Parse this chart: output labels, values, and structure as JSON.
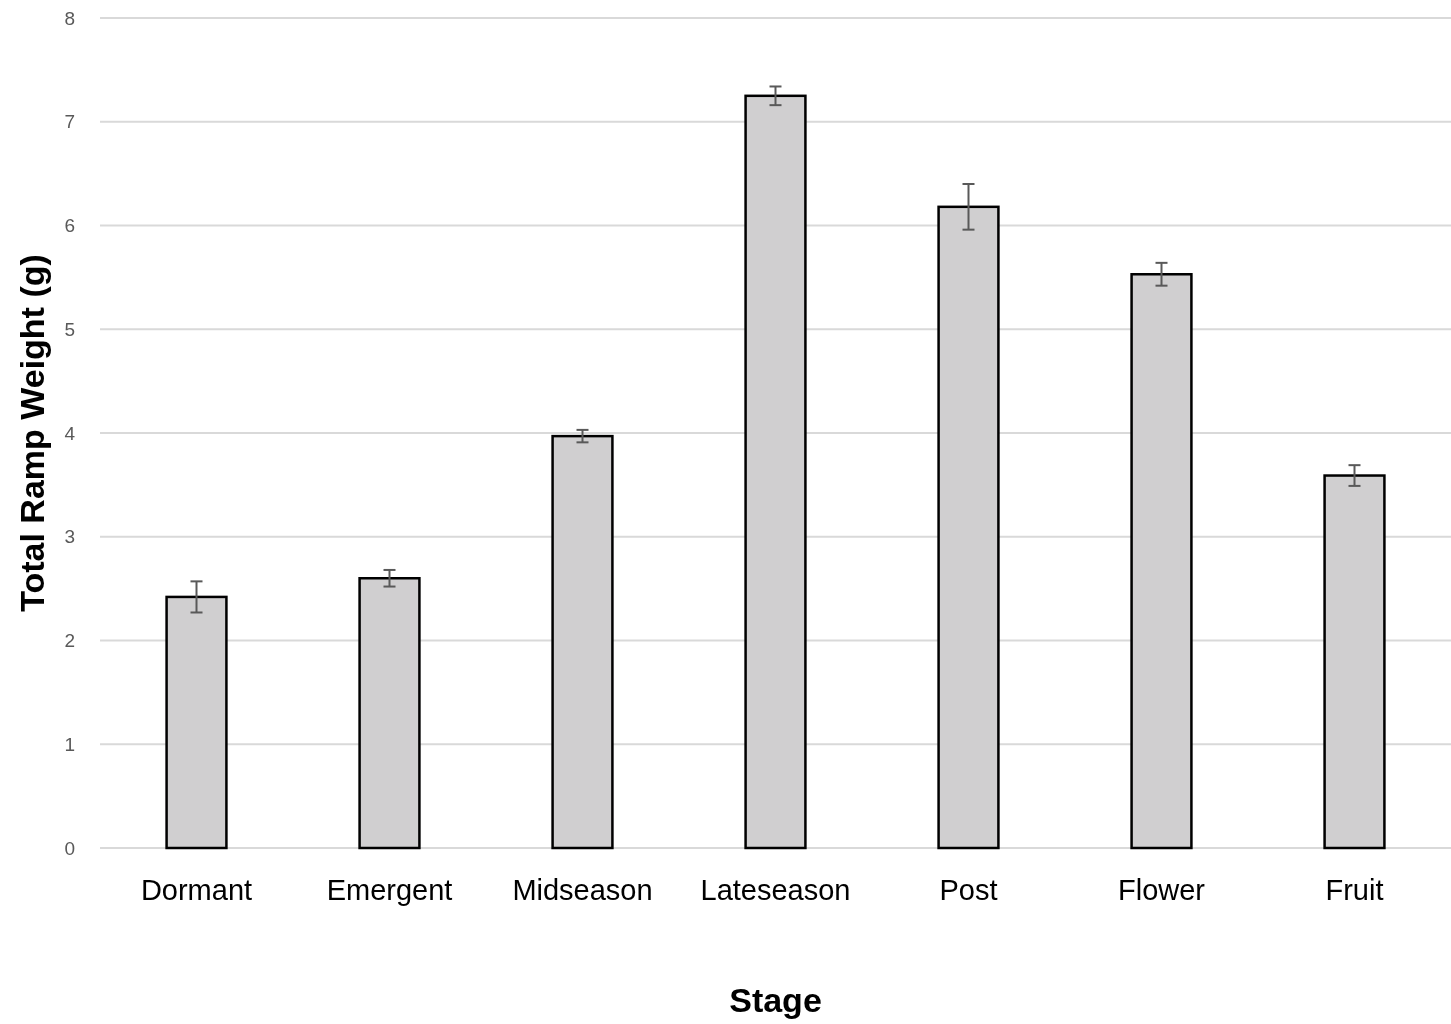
{
  "chart_data": {
    "type": "bar",
    "xlabel": "Stage",
    "ylabel": "Total Ramp Weight (g)",
    "categories": [
      "Dormant",
      "Emergent",
      "Midseason",
      "Lateseason",
      "Post",
      "Flower",
      "Fruit"
    ],
    "values": [
      2.42,
      2.6,
      3.97,
      7.25,
      6.18,
      5.53,
      3.59
    ],
    "errors": [
      0.15,
      0.08,
      0.06,
      0.09,
      0.22,
      0.11,
      0.1
    ],
    "color": "#d0cfd0",
    "ylim": [
      0,
      8
    ],
    "yticks": [
      0,
      1,
      2,
      3,
      4,
      5,
      6,
      7,
      8
    ],
    "grid": "y"
  }
}
